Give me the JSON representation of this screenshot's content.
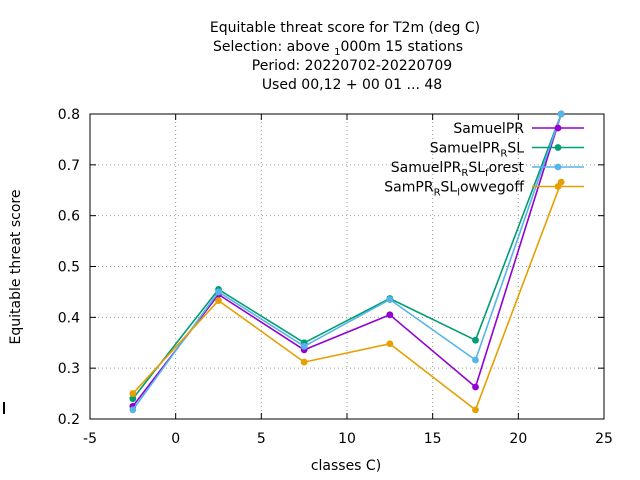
{
  "chart_data": {
    "type": "line",
    "title_lines": [
      "Equitable threat score  for T2m (deg C)",
      "Selection: above ₁1000m      15 stations",
      "Period: 20220702-20220709",
      "Used  00,12  + 00 01 ... 48"
    ],
    "xlabel": "classes C)",
    "ylabel": "Equitable threat score",
    "xlim": [
      -5,
      25
    ],
    "ylim": [
      0.2,
      0.8
    ],
    "xticks": [
      "-5",
      "0",
      "5",
      "10",
      "15",
      "20",
      "25"
    ],
    "yticks": [
      "0.2",
      "0.3",
      "0.4",
      "0.5",
      "0.6",
      "0.7",
      "0.8"
    ],
    "grid": true,
    "legend_position": "top-right",
    "x": [
      -2.5,
      2.5,
      7.5,
      12.5,
      17.5,
      22.5
    ],
    "series": [
      {
        "name": "SamuelPR",
        "color": "#9400d3",
        "values": [
          0.225,
          0.445,
          0.336,
          0.405,
          0.263,
          0.8
        ]
      },
      {
        "name": "SamuelPRₐSL",
        "color": "#009e73",
        "values": [
          0.24,
          0.455,
          0.35,
          0.437,
          0.355,
          0.8
        ]
      },
      {
        "name": "SamuelPRₐSLₒorest",
        "color": "#56b4e9",
        "values": [
          0.218,
          0.45,
          0.343,
          0.435,
          0.316,
          0.8
        ]
      },
      {
        "name": "SamPRₐSLₗowvegoff",
        "color": "#e69f00",
        "values": [
          0.25,
          0.433,
          0.312,
          0.348,
          0.218,
          0.666
        ]
      }
    ]
  },
  "legend_display": [
    {
      "main": "SamuelPR",
      "parts": []
    },
    {
      "main": "SamuelPR",
      "parts": [
        [
          "sub",
          "R"
        ],
        [
          "norm",
          "SL"
        ]
      ]
    },
    {
      "main": "SamuelPR",
      "parts": [
        [
          "sub",
          "R"
        ],
        [
          "norm",
          "SL"
        ],
        [
          "sub",
          "f"
        ],
        [
          "norm",
          "orest"
        ]
      ]
    },
    {
      "main": "SamPR",
      "parts": [
        [
          "sub",
          "R"
        ],
        [
          "norm",
          "SL"
        ],
        [
          "sub",
          "l"
        ],
        [
          "norm",
          "owvegoff"
        ]
      ]
    }
  ]
}
